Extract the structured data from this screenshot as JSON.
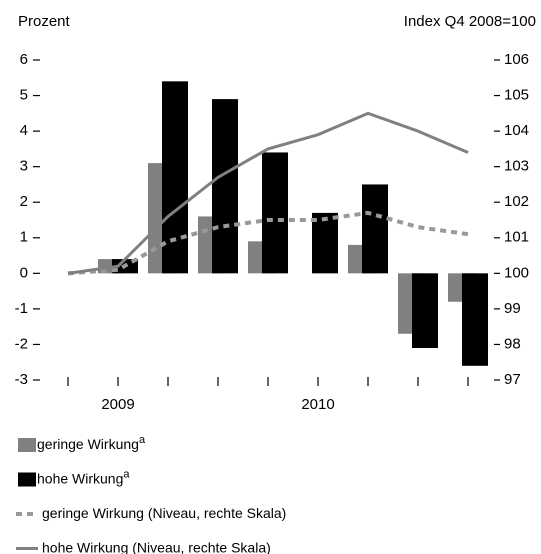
{
  "chart_data": {
    "type": "bar",
    "y_label": "Prozent",
    "y2_label": "Index Q4 2008=100",
    "categories": [
      null,
      "2009",
      null,
      null,
      null,
      "2010",
      null,
      null,
      null
    ],
    "ylim": [
      -3,
      6
    ],
    "yticks": [
      -3,
      -2,
      -1,
      0,
      1,
      2,
      3,
      4,
      5,
      6
    ],
    "y2lim": [
      97,
      106
    ],
    "y2ticks": [
      97,
      98,
      99,
      100,
      101,
      102,
      103,
      104,
      105,
      106
    ],
    "series": [
      {
        "name": "geringe Wirkung",
        "note": "a",
        "type": "bar",
        "color": "#808080",
        "values": [
          null,
          0.4,
          3.1,
          1.6,
          0.9,
          0,
          0.8,
          -1.7,
          -0.8
        ]
      },
      {
        "name": "hohe Wirkung",
        "note": "a",
        "type": "bar",
        "color": "#000000",
        "values": [
          null,
          0.4,
          5.4,
          4.9,
          3.4,
          1.7,
          2.5,
          -2.1,
          -2.6
        ]
      },
      {
        "name": "geringe Wirkung (Niveau, rechte Skala)",
        "type": "line",
        "dashed": true,
        "axis": "y2",
        "color": "#999999",
        "values": [
          100,
          100.1,
          100.9,
          101.3,
          101.5,
          101.5,
          101.7,
          101.3,
          101.1
        ]
      },
      {
        "name": "hohe Wirkung (Niveau, rechte Skala)",
        "type": "line",
        "dashed": false,
        "axis": "y2",
        "color": "#808080",
        "values": [
          100,
          100.2,
          101.6,
          102.7,
          103.5,
          103.9,
          104.5,
          104,
          103.4
        ]
      }
    ]
  }
}
